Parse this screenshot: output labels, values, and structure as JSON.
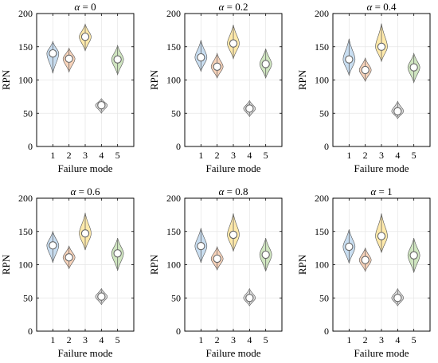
{
  "chart_data": [
    {
      "type": "violin",
      "title": "α = 0",
      "title_symbol": "α",
      "title_value": "= 0",
      "xlabel": "Failure mode",
      "ylabel": "RPN",
      "categories": [
        "1",
        "2",
        "3",
        "4",
        "5"
      ],
      "yticks": [
        "0",
        "50",
        "100",
        "150",
        "200"
      ],
      "ylim": [
        0,
        200
      ],
      "grid": true,
      "colors": [
        "#9dc3e6",
        "#f4b183",
        "#ffd966",
        "#bfbfbf",
        "#a9d18e"
      ],
      "medians": [
        140,
        132,
        165,
        62,
        131
      ],
      "mins": [
        110,
        112,
        144,
        50,
        108
      ],
      "maxs": [
        158,
        148,
        184,
        72,
        152
      ]
    },
    {
      "type": "violin",
      "title": "α = 0.2",
      "title_symbol": "α",
      "title_value": "= 0.2",
      "xlabel": "Failure mode",
      "ylabel": "RPN",
      "categories": [
        "1",
        "2",
        "3",
        "4",
        "5"
      ],
      "yticks": [
        "0",
        "50",
        "100",
        "150",
        "200"
      ],
      "ylim": [
        0,
        200
      ],
      "grid": true,
      "colors": [
        "#9dc3e6",
        "#f4b183",
        "#ffd966",
        "#bfbfbf",
        "#a9d18e"
      ],
      "medians": [
        134,
        120,
        155,
        57,
        124
      ],
      "mins": [
        113,
        103,
        132,
        45,
        103
      ],
      "maxs": [
        160,
        140,
        183,
        69,
        147
      ]
    },
    {
      "type": "violin",
      "title": "α = 0.4",
      "title_symbol": "α",
      "title_value": "= 0.4",
      "xlabel": "Failure mode",
      "ylabel": "RPN",
      "categories": [
        "1",
        "2",
        "3",
        "4",
        "5"
      ],
      "yticks": [
        "0",
        "50",
        "100",
        "150",
        "200"
      ],
      "ylim": [
        0,
        200
      ],
      "grid": true,
      "colors": [
        "#9dc3e6",
        "#f4b183",
        "#ffd966",
        "#bfbfbf",
        "#a9d18e"
      ],
      "medians": [
        131,
        115,
        150,
        53,
        119
      ],
      "mins": [
        107,
        98,
        128,
        42,
        96
      ],
      "maxs": [
        162,
        133,
        185,
        68,
        140
      ]
    },
    {
      "type": "violin",
      "title": "α = 0.6",
      "title_symbol": "α",
      "title_value": "= 0.6",
      "xlabel": "Failure mode",
      "ylabel": "RPN",
      "categories": [
        "1",
        "2",
        "3",
        "4",
        "5"
      ],
      "yticks": [
        "0",
        "50",
        "100",
        "150",
        "200"
      ],
      "ylim": [
        0,
        200
      ],
      "grid": true,
      "colors": [
        "#9dc3e6",
        "#f4b183",
        "#ffd966",
        "#bfbfbf",
        "#a9d18e"
      ],
      "medians": [
        129,
        111,
        147,
        52,
        117
      ],
      "mins": [
        103,
        94,
        122,
        40,
        91
      ],
      "maxs": [
        150,
        128,
        178,
        64,
        140
      ]
    },
    {
      "type": "violin",
      "title": "α = 0.8",
      "title_symbol": "α",
      "title_value": "= 0.8",
      "xlabel": "Failure mode",
      "ylabel": "RPN",
      "categories": [
        "1",
        "2",
        "3",
        "4",
        "5"
      ],
      "yticks": [
        "0",
        "50",
        "100",
        "150",
        "200"
      ],
      "ylim": [
        0,
        200
      ],
      "grid": true,
      "colors": [
        "#9dc3e6",
        "#f4b183",
        "#ffd966",
        "#bfbfbf",
        "#a9d18e"
      ],
      "medians": [
        128,
        109,
        145,
        50,
        115
      ],
      "mins": [
        103,
        92,
        120,
        38,
        90
      ],
      "maxs": [
        155,
        127,
        177,
        64,
        140
      ]
    },
    {
      "type": "violin",
      "title": "α = 1",
      "title_symbol": "α",
      "title_value": "= 1",
      "xlabel": "Failure mode",
      "ylabel": "RPN",
      "categories": [
        "1",
        "2",
        "3",
        "4",
        "5"
      ],
      "yticks": [
        "0",
        "50",
        "100",
        "150",
        "200"
      ],
      "ylim": [
        0,
        200
      ],
      "grid": true,
      "colors": [
        "#9dc3e6",
        "#f4b183",
        "#ffd966",
        "#bfbfbf",
        "#a9d18e"
      ],
      "medians": [
        127,
        107,
        143,
        50,
        114
      ],
      "mins": [
        102,
        90,
        118,
        38,
        88
      ],
      "maxs": [
        153,
        125,
        177,
        64,
        140
      ]
    }
  ]
}
